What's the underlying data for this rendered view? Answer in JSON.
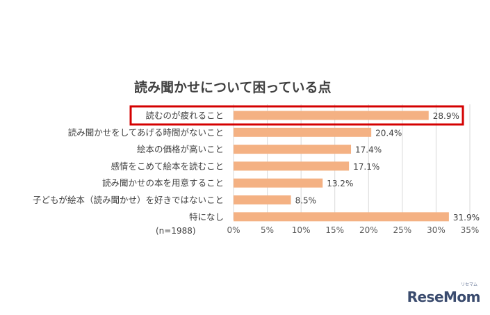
{
  "chart_data": {
    "type": "bar",
    "orientation": "horizontal",
    "title": "読み聞かせについて困っている点",
    "categories": [
      "読むのが疲れること",
      "読み聞かせをしてあげる時間がないこと",
      "絵本の価格が高いこと",
      "感情をこめて絵本を読むこと",
      "読み聞かせの本を用意すること",
      "子どもが絵本（読み聞かせ）を好きではないこと",
      "特になし"
    ],
    "values": [
      28.9,
      20.4,
      17.4,
      17.1,
      13.2,
      8.5,
      31.9
    ],
    "value_labels": [
      "28.9%",
      "20.4%",
      "17.4%",
      "17.1%",
      "13.2%",
      "8.5%",
      "31.9%"
    ],
    "xlim": [
      0,
      35
    ],
    "x_ticks": [
      "0%",
      "5%",
      "10%",
      "15%",
      "20%",
      "25%",
      "30%",
      "35%"
    ],
    "grid": true,
    "note": "(n=1988)",
    "highlighted_category_index": 0,
    "colors": {
      "bar": "#f4b183",
      "highlight_box": "#d40000",
      "grid": "#d9d9d9"
    }
  },
  "brand": {
    "logo_text": "ReseMom",
    "logo_sub": "リセマム"
  }
}
